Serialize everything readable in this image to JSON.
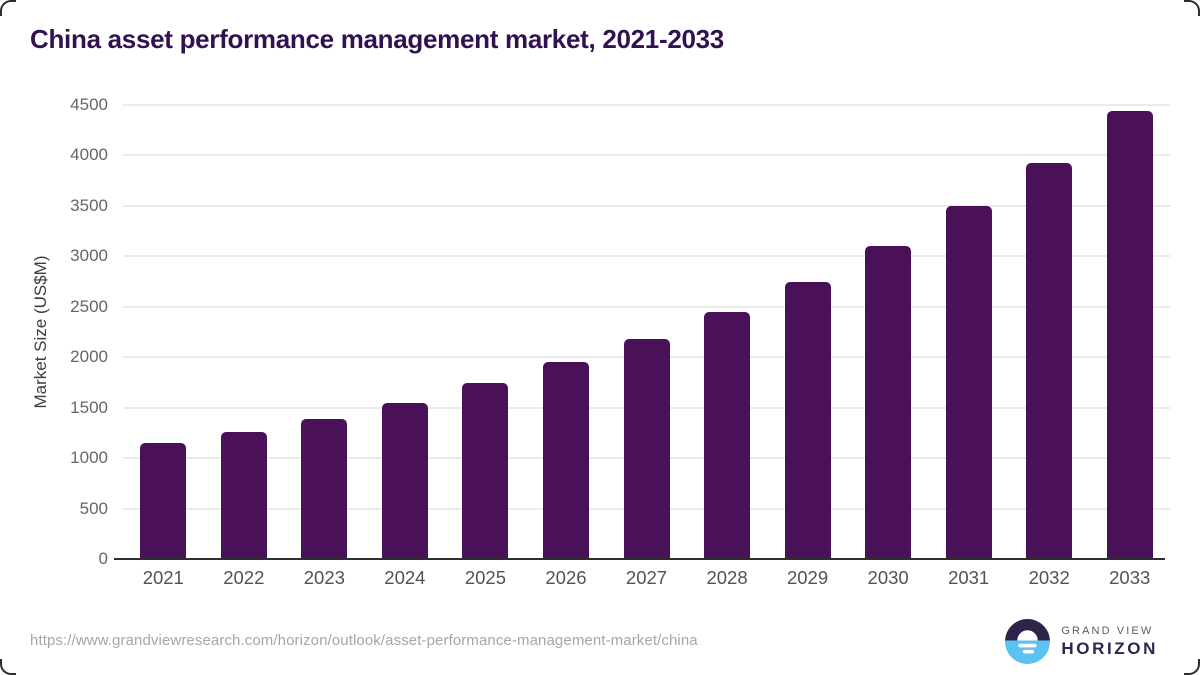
{
  "title": "China asset performance management market, 2021-2033",
  "source_url": "https://www.grandviewresearch.com/horizon/outlook/asset-performance-management-market/china",
  "logo": {
    "line1": "GRAND VIEW",
    "line2": "HORIZON"
  },
  "colors": {
    "title": "#321150",
    "bar": "#4a1158",
    "grid": "#ebebeb",
    "axis": "#2e2e2e",
    "logo_dark": "#2e2349",
    "logo_blue": "#5cc3f0"
  },
  "chart_data": {
    "type": "bar",
    "title": "China asset performance management market, 2021-2033",
    "categories": [
      "2021",
      "2022",
      "2023",
      "2024",
      "2025",
      "2026",
      "2027",
      "2028",
      "2029",
      "2030",
      "2031",
      "2032",
      "2033"
    ],
    "values": [
      1150,
      1260,
      1390,
      1550,
      1740,
      1950,
      2180,
      2450,
      2750,
      3100,
      3500,
      3930,
      4440
    ],
    "xlabel": "",
    "ylabel": "Market Size (US$M)",
    "ylim": [
      0,
      4500
    ],
    "yticks": [
      0,
      500,
      1000,
      1500,
      2000,
      2500,
      3000,
      3500,
      4000,
      4500
    ],
    "grid": true,
    "legend": "none",
    "bar_color": "#4a1158"
  }
}
